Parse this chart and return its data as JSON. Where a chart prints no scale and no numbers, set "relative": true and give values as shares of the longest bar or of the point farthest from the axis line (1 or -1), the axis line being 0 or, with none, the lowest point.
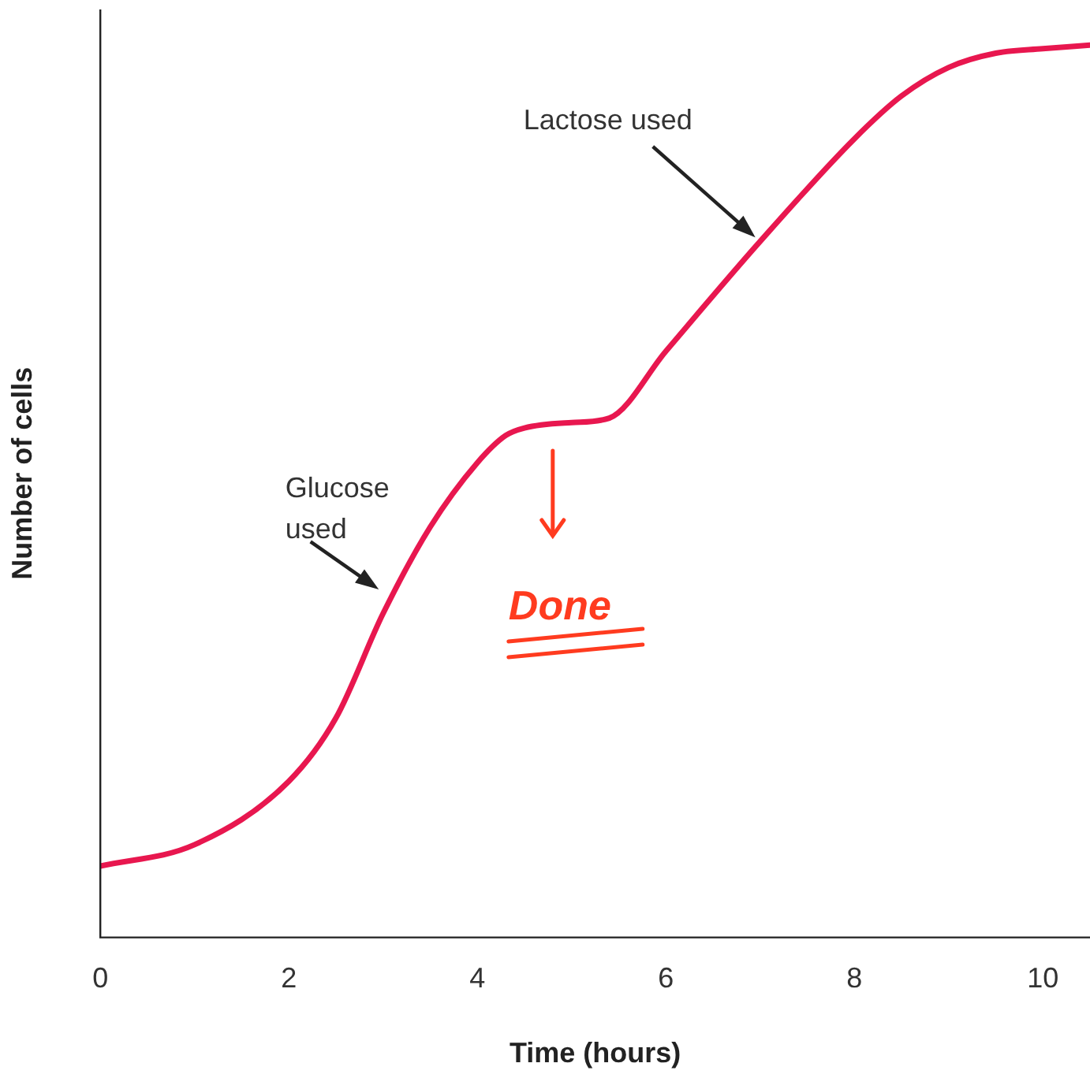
{
  "chart_data": {
    "type": "line",
    "relative": true,
    "xlabel": "Time (hours)",
    "ylabel": "Number of cells",
    "xlim": [
      0,
      10.5
    ],
    "xticks": [
      0,
      2,
      4,
      6,
      8,
      10
    ],
    "grid": false,
    "legend": false,
    "marker": "none",
    "line_style": "solid",
    "series": [
      {
        "color": "#e8174f",
        "x": [
          0,
          1,
          2,
          2.5,
          3,
          3.5,
          4,
          4.3,
          4.5,
          5,
          5.4,
          6,
          7,
          8,
          8.5,
          9,
          9.5,
          10,
          10.5
        ],
        "values": [
          0.08,
          0.104,
          0.175,
          0.246,
          0.363,
          0.46,
          0.532,
          0.5625,
          0.571,
          0.577,
          0.582,
          0.657,
          0.78,
          0.895,
          0.943,
          0.975,
          0.991,
          0.996,
          1
        ]
      }
    ],
    "annotations": [
      {
        "text": "Glucose used",
        "x": 3,
        "y": 0.38
      },
      "Lactose used",
      "Done"
    ]
  }
}
